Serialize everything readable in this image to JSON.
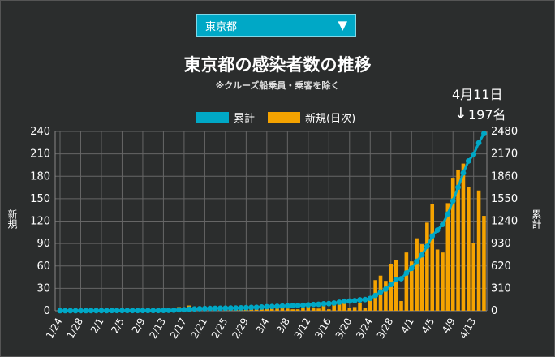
{
  "select": {
    "label": "東京都",
    "arrow": "▼"
  },
  "chart_data": {
    "type": "bar",
    "title": "東京都の感染者数の推移",
    "subtitle": "※クルーズ船乗員・乗客を除く",
    "ylabel_left": "新規",
    "ylabel_right": "累計",
    "y_left": {
      "ylim": [
        0,
        240
      ],
      "ticks": [
        "0",
        "30",
        "60",
        "90",
        "120",
        "150",
        "180",
        "210",
        "240"
      ]
    },
    "y_right": {
      "ylim": [
        0,
        2480
      ],
      "ticks": [
        "0",
        "310",
        "620",
        "930",
        "1240",
        "1550",
        "1860",
        "2170",
        "2480"
      ]
    },
    "x_tick_labels": [
      "1/24",
      "1/28",
      "2/1",
      "2/5",
      "2/9",
      "2/13",
      "2/17",
      "2/21",
      "2/25",
      "2/29",
      "3/4",
      "3/8",
      "3/12",
      "3/16",
      "3/20",
      "3/24",
      "3/28",
      "4/1",
      "4/5",
      "4/9",
      "4/13"
    ],
    "dates": [
      "1/24",
      "1/25",
      "1/26",
      "1/27",
      "1/28",
      "1/29",
      "1/30",
      "1/31",
      "2/1",
      "2/2",
      "2/3",
      "2/4",
      "2/5",
      "2/6",
      "2/7",
      "2/8",
      "2/9",
      "2/10",
      "2/11",
      "2/12",
      "2/13",
      "2/14",
      "2/15",
      "2/16",
      "2/17",
      "2/18",
      "2/19",
      "2/20",
      "2/21",
      "2/22",
      "2/23",
      "2/24",
      "2/25",
      "2/26",
      "2/27",
      "2/28",
      "2/29",
      "3/1",
      "3/2",
      "3/3",
      "3/4",
      "3/5",
      "3/6",
      "3/7",
      "3/8",
      "3/9",
      "3/10",
      "3/11",
      "3/12",
      "3/13",
      "3/14",
      "3/15",
      "3/16",
      "3/17",
      "3/18",
      "3/19",
      "3/20",
      "3/21",
      "3/22",
      "3/23",
      "3/24",
      "3/25",
      "3/26",
      "3/27",
      "3/28",
      "3/29",
      "3/30",
      "3/31",
      "4/1",
      "4/2",
      "4/3",
      "4/4",
      "4/5",
      "4/6",
      "4/7",
      "4/8",
      "4/9",
      "4/10",
      "4/11",
      "4/12",
      "4/13",
      "4/14",
      "4/15"
    ],
    "series": [
      {
        "name": "累計",
        "axis": "right",
        "type": "line",
        "values": [
          1,
          1,
          1,
          1,
          1,
          1,
          2,
          2,
          2,
          2,
          3,
          3,
          3,
          3,
          3,
          3,
          3,
          3,
          3,
          3,
          4,
          6,
          8,
          13,
          15,
          22,
          25,
          28,
          30,
          32,
          33,
          35,
          36,
          37,
          38,
          40,
          43,
          46,
          48,
          52,
          56,
          59,
          62,
          66,
          69,
          71,
          73,
          77,
          83,
          87,
          90,
          97,
          99,
          107,
          118,
          131,
          135,
          140,
          151,
          155,
          171,
          212,
          259,
          299,
          362,
          430,
          443,
          521,
          587,
          684,
          773,
          891,
          1034,
          1116,
          1194,
          1338,
          1519,
          1708,
          1905,
          2071,
          2162,
          2323,
          2450
        ]
      },
      {
        "name": "新規(日次)",
        "axis": "left",
        "type": "bar",
        "values": [
          0,
          0,
          0,
          0,
          0,
          0,
          1,
          0,
          0,
          0,
          1,
          0,
          0,
          0,
          0,
          0,
          0,
          0,
          0,
          0,
          1,
          2,
          2,
          5,
          2,
          7,
          3,
          3,
          2,
          2,
          1,
          2,
          1,
          1,
          1,
          2,
          3,
          3,
          2,
          4,
          4,
          3,
          3,
          4,
          3,
          2,
          2,
          4,
          6,
          4,
          3,
          7,
          2,
          8,
          11,
          13,
          4,
          5,
          11,
          4,
          16,
          41,
          47,
          40,
          63,
          68,
          13,
          78,
          66,
          97,
          89,
          118,
          143,
          82,
          78,
          144,
          178,
          189,
          197,
          166,
          91,
          161,
          127
        ]
      }
    ],
    "colors": {
      "line": "#00a8c6",
      "bar": "#f5a300",
      "grid": "#666666",
      "background": "#2b2d2d"
    },
    "annotation": {
      "date": "4月11日",
      "value": "197名",
      "arrow": "↓"
    },
    "legend_position": "top-center",
    "grid": true
  }
}
